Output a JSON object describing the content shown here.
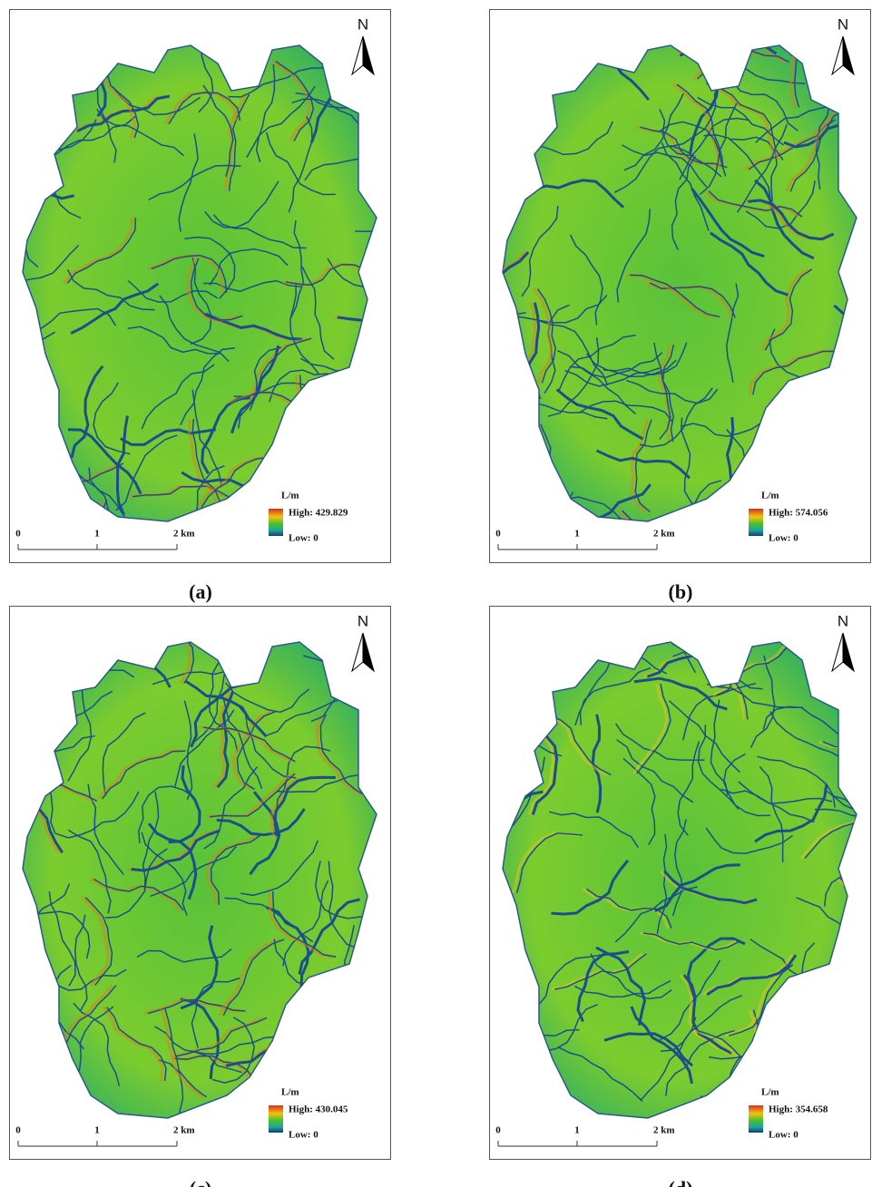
{
  "panels": [
    {
      "label": "(a)",
      "north": "N",
      "legend": {
        "title": "L/m",
        "high": "High: 429.829",
        "low": "Low: 0"
      },
      "scale": [
        "0",
        "1",
        "2 km"
      ]
    },
    {
      "label": "(b)",
      "north": "N",
      "legend": {
        "title": "L/m",
        "high": "High: 574.056",
        "low": "Low: 0"
      },
      "scale": [
        "0",
        "1",
        "2 km"
      ]
    },
    {
      "label": "(c)",
      "north": "N",
      "legend": {
        "title": "L/m",
        "high": "High: 430.045",
        "low": "Low: 0"
      },
      "scale": [
        "0",
        "1",
        "2 km"
      ]
    },
    {
      "label": "(d)",
      "north": "N",
      "legend": {
        "title": "L/m",
        "high": "High: 354.658",
        "low": "Low: 0"
      },
      "scale": [
        "0",
        "1",
        "2 km"
      ]
    }
  ]
}
